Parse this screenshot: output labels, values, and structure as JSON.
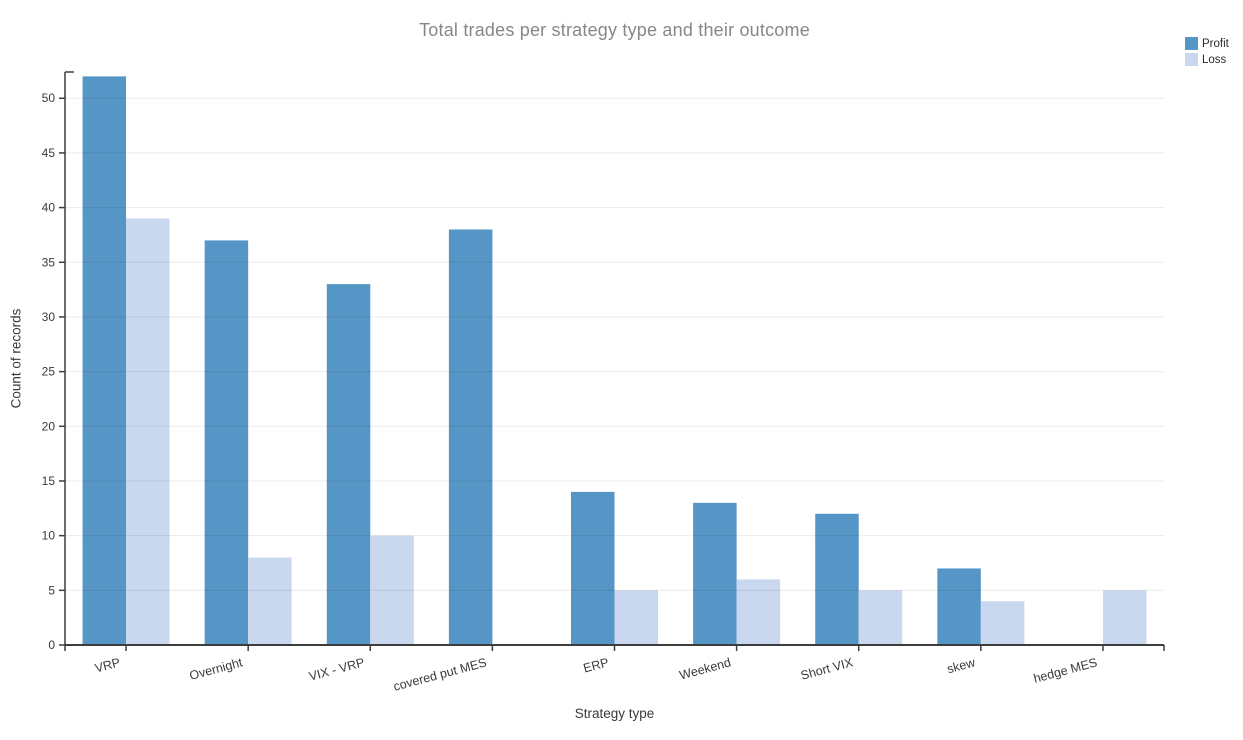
{
  "chart_data": {
    "type": "bar",
    "title": "Total trades per strategy type and their outcome",
    "xlabel": "Strategy type",
    "ylabel": "Count of records",
    "categories": [
      "VRP",
      "Overnight",
      "VIX - VRP",
      "covered put MES",
      "ERP",
      "Weekend",
      "Short VIX",
      "skew",
      "hedge MES"
    ],
    "series": [
      {
        "name": "Profit",
        "color": "#5596C6",
        "values": [
          52,
          37,
          33,
          38,
          14,
          13,
          12,
          7,
          0
        ]
      },
      {
        "name": "Loss",
        "color": "#C9D8EF",
        "values": [
          39,
          8,
          10,
          0,
          5,
          6,
          5,
          4,
          5
        ]
      }
    ],
    "ylim": [
      0,
      52.4
    ],
    "yticks": [
      0,
      5,
      10,
      15,
      20,
      25,
      30,
      35,
      40,
      45,
      50
    ],
    "grid": true,
    "grid_on_top": true,
    "legend_position": "top-right",
    "title_color": "#878787",
    "axis_color": "#3d3d3d",
    "tick_label_color": "#3a3a3a",
    "grid_color": "rgba(0,0,0,0.08)"
  }
}
